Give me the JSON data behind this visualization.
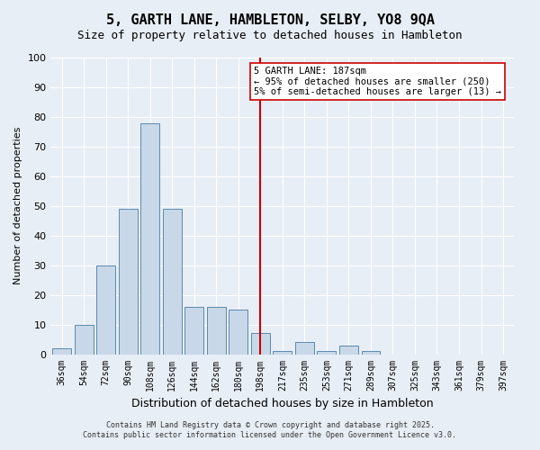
{
  "title": "5, GARTH LANE, HAMBLETON, SELBY, YO8 9QA",
  "subtitle": "Size of property relative to detached houses in Hambleton",
  "xlabel": "Distribution of detached houses by size in Hambleton",
  "ylabel": "Number of detached properties",
  "bar_color": "#c8d8e8",
  "bar_edge_color": "#5a8ab0",
  "background_color": "#e8eef5",
  "grid_color": "#ffffff",
  "categories": [
    "36sqm",
    "54sqm",
    "72sqm",
    "90sqm",
    "108sqm",
    "126sqm",
    "144sqm",
    "162sqm",
    "180sqm",
    "198sqm",
    "217sqm",
    "235sqm",
    "253sqm",
    "271sqm",
    "289sqm",
    "307sqm",
    "325sqm",
    "343sqm",
    "361sqm",
    "379sqm",
    "397sqm"
  ],
  "values": [
    2,
    10,
    30,
    49,
    78,
    49,
    16,
    16,
    15,
    7,
    1,
    4,
    1,
    3,
    1,
    0,
    0,
    0,
    0,
    0,
    0
  ],
  "ylim": [
    0,
    100
  ],
  "yticks": [
    0,
    10,
    20,
    30,
    40,
    50,
    60,
    70,
    80,
    90,
    100
  ],
  "vline_x": 9,
  "vline_color": "#cc0000",
  "annotation_text": "5 GARTH LANE: 187sqm\n← 95% of detached houses are smaller (250)\n5% of semi-detached houses are larger (13) →",
  "annotation_box_color": "#ffffff",
  "annotation_box_edge_color": "#cc0000",
  "footer_line1": "Contains HM Land Registry data © Crown copyright and database right 2025.",
  "footer_line2": "Contains public sector information licensed under the Open Government Licence v3.0.",
  "title_fontsize": 11,
  "subtitle_fontsize": 9,
  "annotation_fontsize": 7.5
}
